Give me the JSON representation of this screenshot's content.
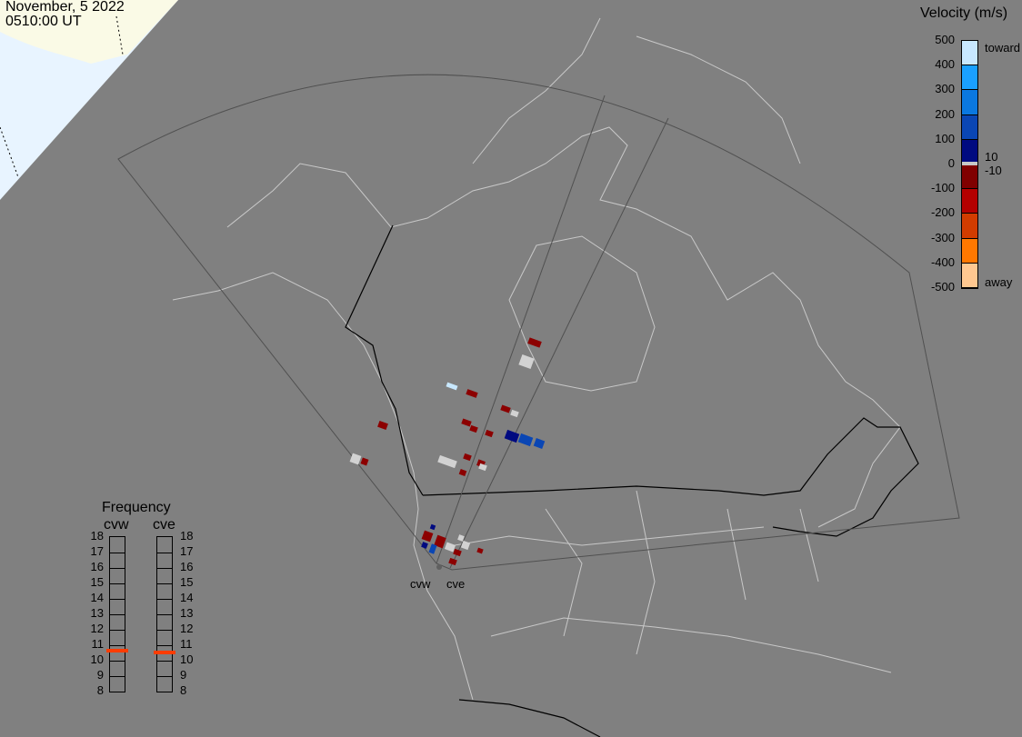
{
  "header": {
    "date": "November, 5 2022",
    "time": "0510:00 UT"
  },
  "velocity_legend": {
    "title": "Velocity (m/s)",
    "ticks": [
      "500",
      "400",
      "300",
      "200",
      "100",
      "0",
      "-100",
      "-200",
      "-300",
      "-400",
      "-500"
    ],
    "toward_label": "toward",
    "away_label": "away",
    "pos_threshold": "10",
    "neg_threshold": "-10",
    "colors": [
      "#c8e8ff",
      "#1aa0ff",
      "#0a78e0",
      "#0a46b4",
      "#000a80",
      "#800000",
      "#b40000",
      "#d23c00",
      "#ff7800",
      "#ffc890"
    ]
  },
  "frequency": {
    "title": "Frequency",
    "radars": [
      {
        "name": "cvw",
        "value_mhz": 10.6
      },
      {
        "name": "cve",
        "value_mhz": 10.5
      }
    ],
    "ticks": [
      "18",
      "17",
      "16",
      "15",
      "14",
      "13",
      "12",
      "11",
      "10",
      "9",
      "8"
    ],
    "marker_color": "#ff3c00"
  },
  "radar_labels": [
    "cvw",
    "cve"
  ],
  "colors": {
    "background": "#808080",
    "coast": "#c8c8c8",
    "daylight": "#e8f4ff",
    "land_day": "#fafae6"
  }
}
